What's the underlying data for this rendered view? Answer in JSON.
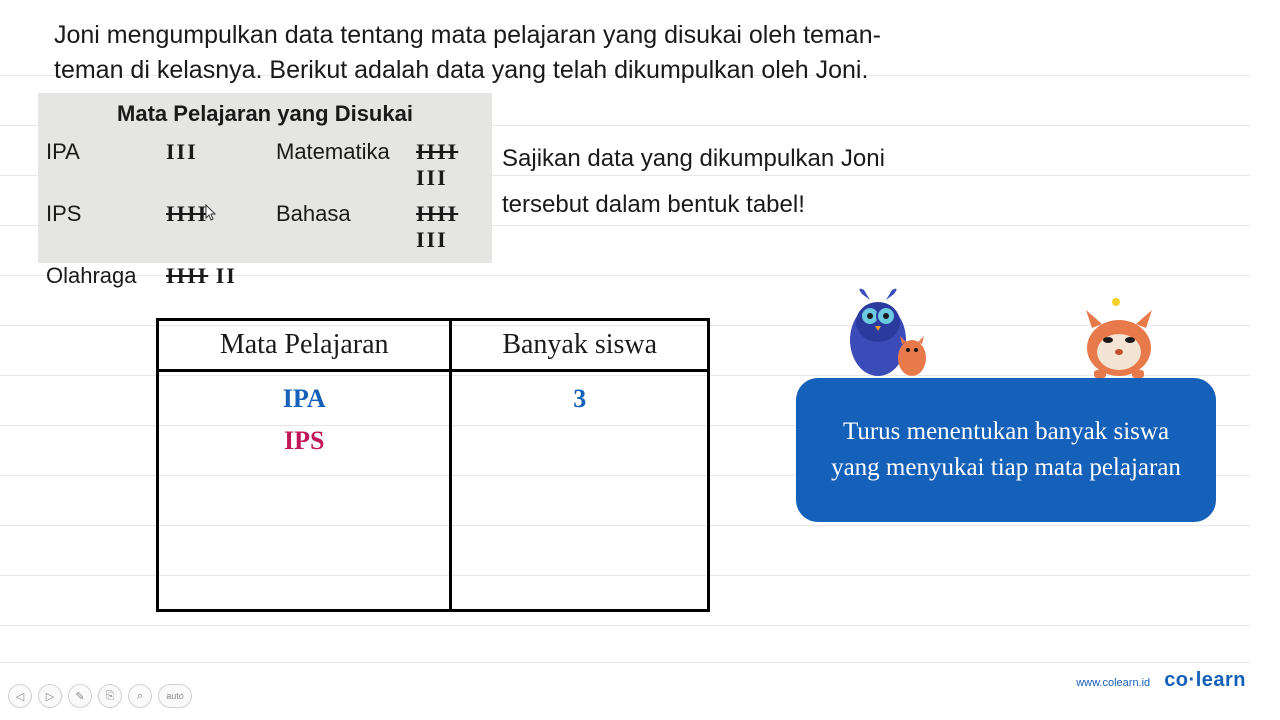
{
  "problem": "Joni mengumpulkan data tentang mata pelajaran yang disukai oleh teman-teman di kelasnya. Berikut adalah data yang telah dikumpulkan oleh Joni.",
  "tally_title": "Mata Pelajaran yang Disukai",
  "tally_rows": [
    {
      "subj1": "IPA",
      "marks1": "III",
      "subj2": "Matematika",
      "marks2": "ᚎ III"
    },
    {
      "subj1": "IPS",
      "marks1": "ᚎ",
      "subj2": "Bahasa",
      "marks2": "ᚎ III"
    },
    {
      "subj1": "Olahraga",
      "marks1": "ᚎ II",
      "subj2": "",
      "marks2": ""
    }
  ],
  "instruction": "Sajikan data yang dikumpulkan Joni tersebut dalam bentuk tabel!",
  "table": {
    "headers": [
      "Mata Pelajaran",
      "Banyak siswa"
    ],
    "rows": [
      {
        "subject": "IPA",
        "count": "3",
        "color": "#1560b8"
      },
      {
        "subject": "IPS",
        "count": "",
        "color": "#c2185b"
      }
    ]
  },
  "callout_text": "Turus menentukan banyak siswa yang menyukai tiap mata pelajaran",
  "colors": {
    "callout_bg": "#1560b8",
    "callout_text": "#ffffff",
    "tally_bg": "#e5e5e3",
    "brand": "#1560b8",
    "line": "#e8e8e8"
  },
  "footer": {
    "url": "www.colearn.id",
    "brand": "co·learn"
  },
  "controls": [
    "◁",
    "▷",
    "✎",
    "⎘",
    "⌕",
    "auto"
  ],
  "bg_line_positions": [
    75,
    125,
    175,
    225,
    275,
    325,
    375,
    425,
    475,
    525,
    575,
    625,
    662
  ]
}
